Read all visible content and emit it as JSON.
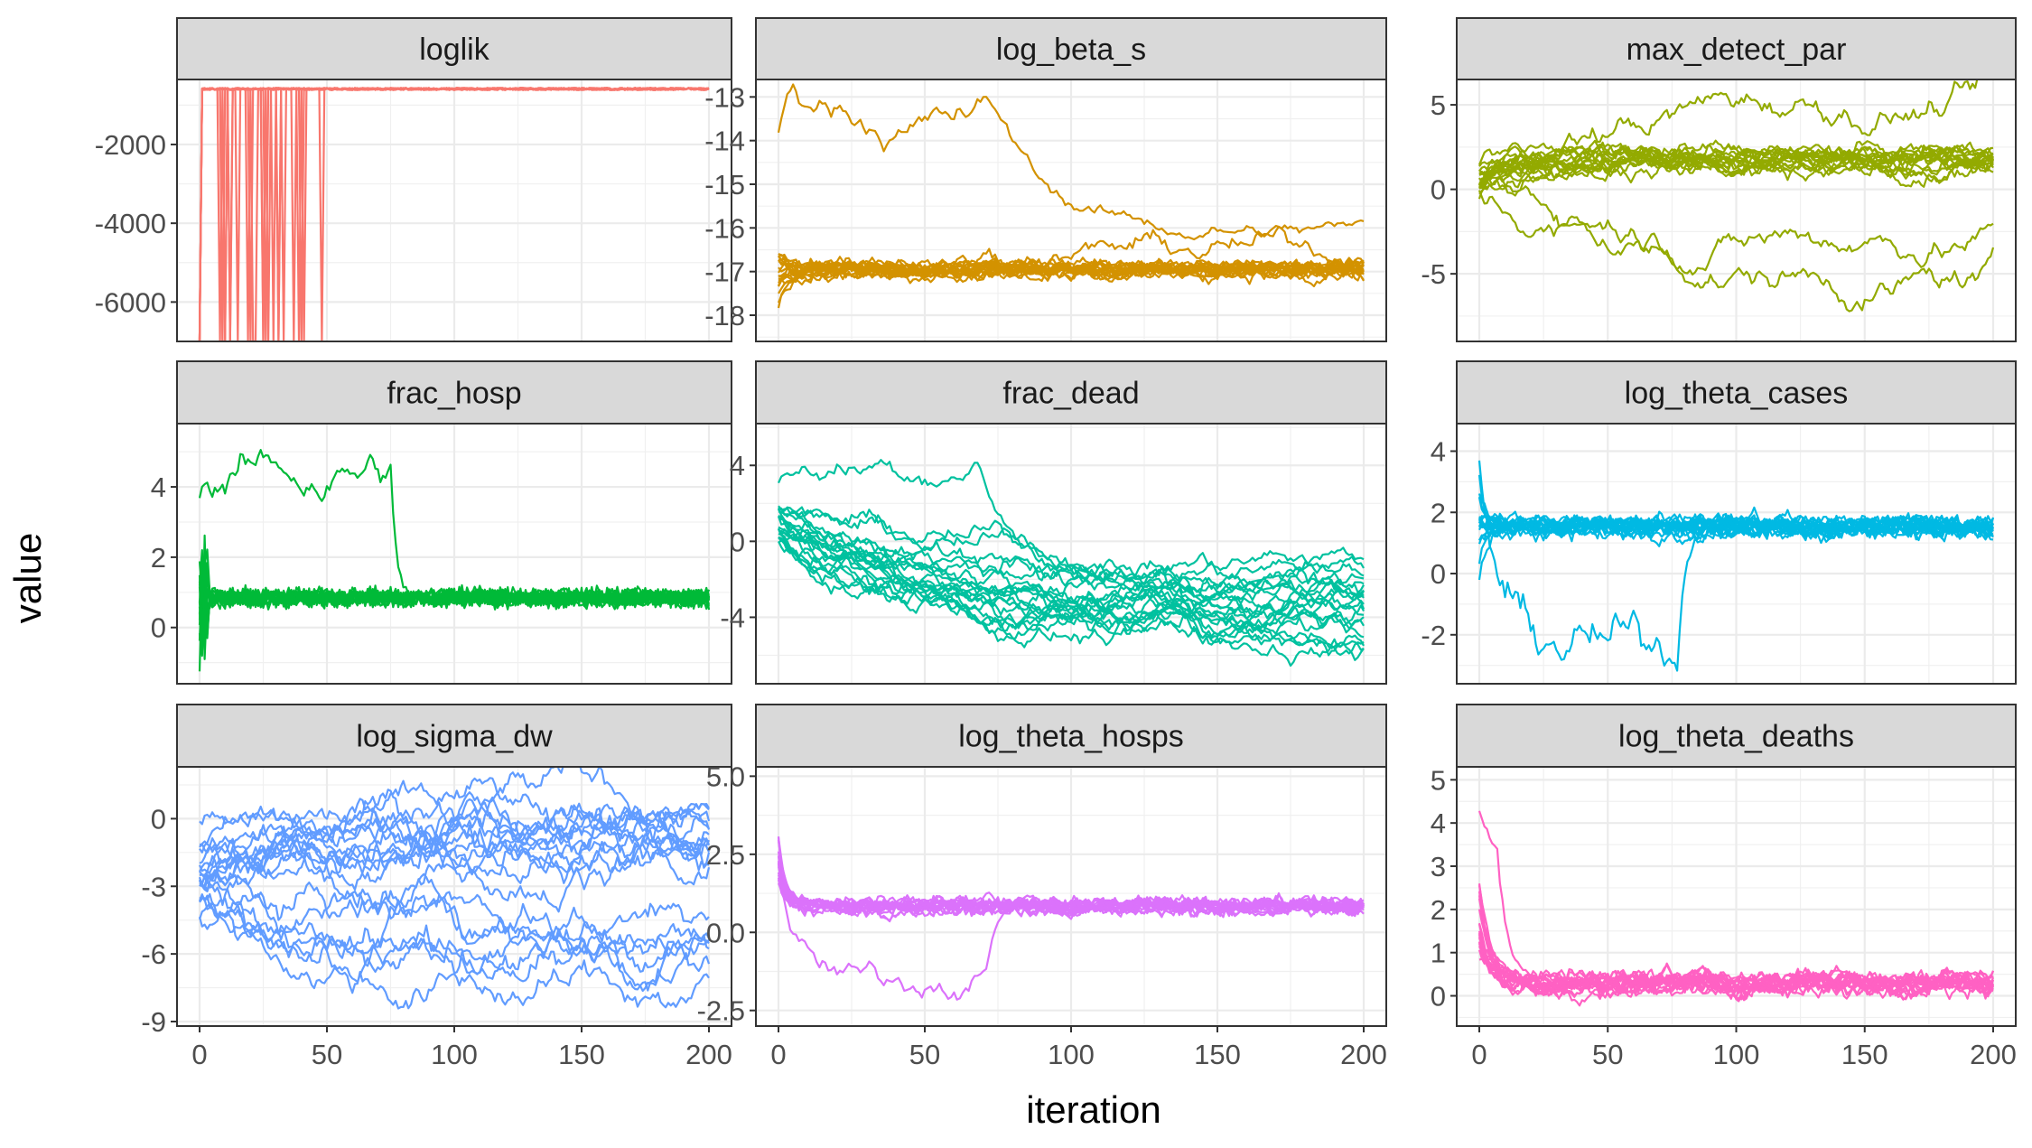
{
  "chart_data": {
    "type": "line",
    "xlabel": "iteration",
    "ylabel": "value",
    "xlim": [
      0,
      200
    ],
    "x_ticks": [
      0,
      50,
      100,
      150,
      200
    ],
    "grid": true,
    "legend": "none",
    "n_chains": 20,
    "panels": [
      {
        "name": "loglik",
        "color": "#F8766D",
        "ylim": [
          -7000,
          -350
        ],
        "y_ticks": [
          -6000,
          -4000,
          -2000
        ],
        "y_tick_labels": [
          "-6000",
          "-4000",
          "-2000"
        ]
      },
      {
        "name": "log_beta_s",
        "color": "#D39200",
        "ylim": [
          -18.6,
          -12.6
        ],
        "y_ticks": [
          -18,
          -17,
          -16,
          -15,
          -14,
          -13
        ],
        "y_tick_labels": [
          "-18",
          "-17",
          "-16",
          "-15",
          "-14",
          "-13"
        ]
      },
      {
        "name": "max_detect_par",
        "color": "#93AA00",
        "ylim": [
          -9,
          6.5
        ],
        "y_ticks": [
          -5,
          0,
          5
        ],
        "y_tick_labels": [
          "-5",
          "0",
          "5"
        ]
      },
      {
        "name": "frac_hosp",
        "color": "#00BA38",
        "ylim": [
          -1.6,
          5.8
        ],
        "y_ticks": [
          0,
          2,
          4
        ],
        "y_tick_labels": [
          "0",
          "2",
          "4"
        ]
      },
      {
        "name": "frac_dead",
        "color": "#00C19F",
        "ylim": [
          -7.5,
          6.2
        ],
        "y_ticks": [
          -4,
          0,
          4
        ],
        "y_tick_labels": [
          "-4",
          "0",
          "4"
        ]
      },
      {
        "name": "log_theta_cases",
        "color": "#00B9E3",
        "ylim": [
          -3.6,
          4.9
        ],
        "y_ticks": [
          -2,
          0,
          2,
          4
        ],
        "y_tick_labels": [
          "-2",
          "0",
          "2",
          "4"
        ]
      },
      {
        "name": "log_sigma_dw",
        "color": "#619CFF",
        "ylim": [
          -9.2,
          2.3
        ],
        "y_ticks": [
          -9,
          -6,
          -3,
          0
        ],
        "y_tick_labels": [
          "-9",
          "-6",
          "-3",
          "0"
        ]
      },
      {
        "name": "log_theta_hosps",
        "color": "#DB72FB",
        "ylim": [
          -3,
          5.3
        ],
        "y_ticks": [
          -2.5,
          0,
          2.5,
          5
        ],
        "y_tick_labels": [
          "-2.5",
          "0.0",
          "2.5",
          "5.0"
        ]
      },
      {
        "name": "log_theta_deaths",
        "color": "#FF61C3",
        "ylim": [
          -0.7,
          5.3
        ],
        "y_ticks": [
          0,
          1,
          2,
          3,
          4,
          5
        ],
        "y_tick_labels": [
          "0",
          "1",
          "2",
          "3",
          "4",
          "5"
        ]
      }
    ]
  }
}
